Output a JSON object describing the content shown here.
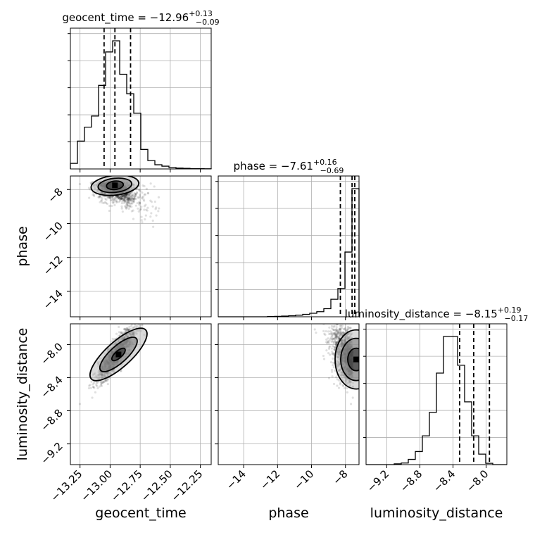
{
  "chart_data": {
    "type": "corner",
    "parameters": [
      "geocent_time",
      "phase",
      "luminosity_distance"
    ],
    "titles": [
      {
        "name": "geocent_time",
        "median": "−12.96",
        "plus": "+0.13",
        "minus": "−0.09"
      },
      {
        "name": "phase",
        "median": "−7.61",
        "plus": "+0.16",
        "minus": "−0.69"
      },
      {
        "name": "luminosity_distance",
        "median": "−8.15",
        "plus": "+0.19",
        "minus": "−0.17"
      }
    ],
    "ranges": {
      "geocent_time": [
        -13.33,
        -12.16
      ],
      "phase": [
        -15.5,
        -7.2
      ],
      "luminosity_distance": [
        -9.45,
        -7.75
      ]
    },
    "ticks": {
      "geocent_time": [
        -13.25,
        -13.0,
        -12.75,
        -12.5,
        -12.25
      ],
      "phase": [
        -14,
        -12,
        -10,
        -8
      ],
      "luminosity_distance": [
        -9.2,
        -8.8,
        -8.4,
        -8.0
      ]
    },
    "tick_labels": {
      "geocent_time": [
        "−13.25",
        "−13.00",
        "−12.75",
        "−12.50",
        "−12.25"
      ],
      "phase": [
        "−14",
        "−12",
        "−10",
        "−8"
      ],
      "luminosity_distance": [
        "−9.2",
        "−8.8",
        "−8.4",
        "−8.0"
      ]
    },
    "quantiles": {
      "geocent_time": [
        -13.05,
        -12.96,
        -12.83
      ],
      "phase": [
        -8.3,
        -7.61,
        -7.45
      ],
      "luminosity_distance": [
        -8.32,
        -8.15,
        -7.96
      ]
    },
    "histograms": {
      "geocent_time": [
        2,
        10,
        15,
        19,
        30,
        42,
        46,
        34,
        27,
        20,
        7,
        3,
        1.5,
        1,
        0.5,
        0.3,
        0.2,
        0.1,
        0.1,
        0.05
      ],
      "phase": [
        0,
        0,
        0,
        0,
        0,
        0,
        0,
        0.2,
        0.3,
        0.5,
        0.8,
        1.2,
        1.8,
        2.6,
        3.8,
        6,
        13,
        21,
        48,
        95
      ],
      "luminosity_distance": [
        0,
        0,
        0,
        0,
        0.3,
        0.6,
        2,
        5,
        11,
        20,
        35,
        49,
        49,
        38,
        24,
        11,
        4,
        0.5,
        0,
        0
      ]
    },
    "hist_ymax": {
      "geocent_time": 46,
      "phase": 95,
      "luminosity_distance": 49
    },
    "grid": true
  }
}
